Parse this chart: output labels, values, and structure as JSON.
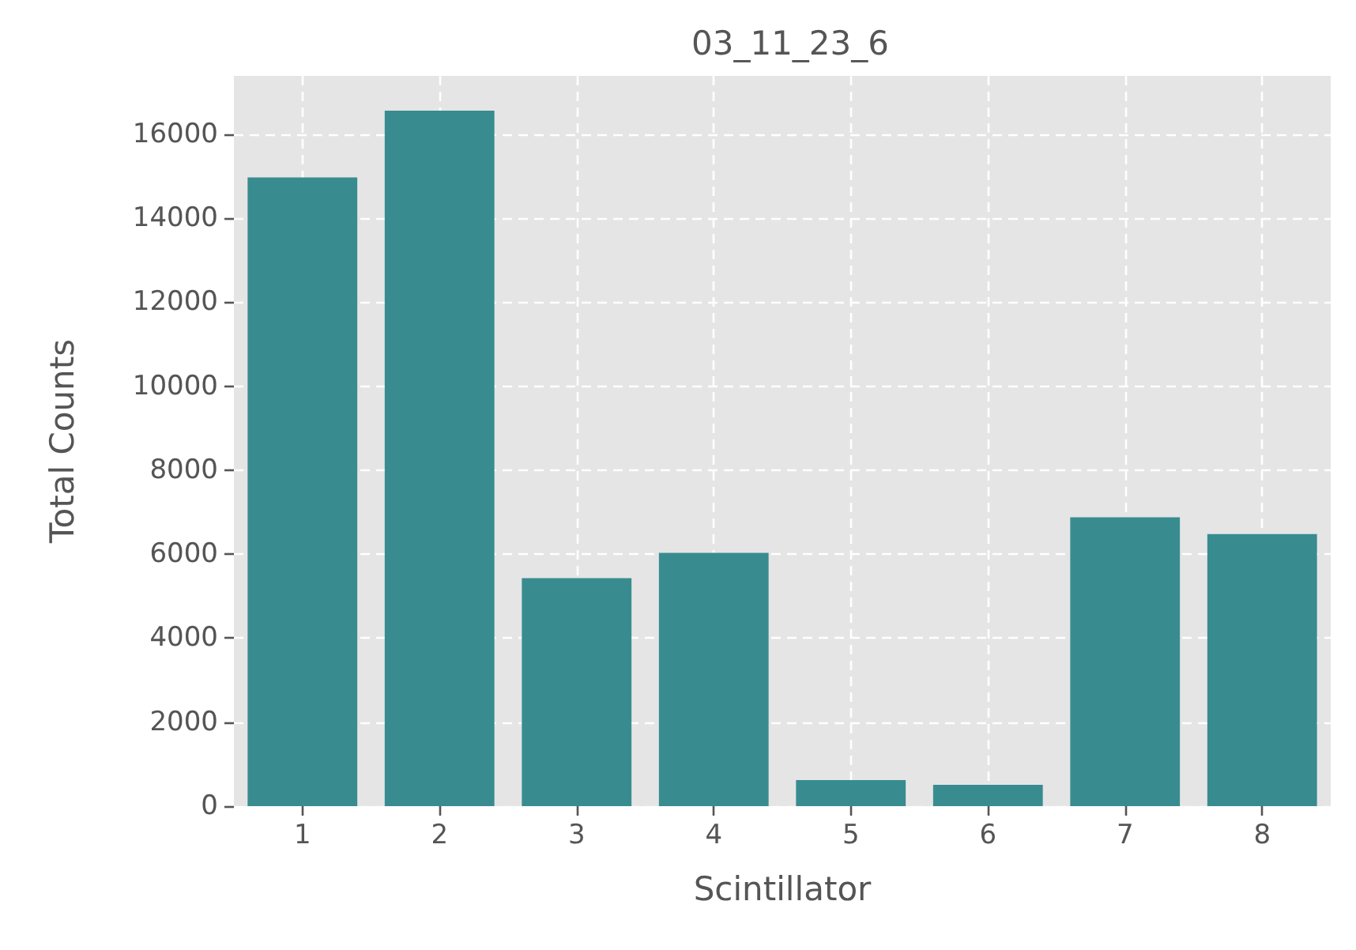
{
  "chart_data": {
    "type": "bar",
    "title": "03_11_23_6",
    "xlabel": "Scintillator",
    "ylabel": "Total Counts",
    "categories": [
      "1",
      "2",
      "3",
      "4",
      "5",
      "6",
      "7",
      "8"
    ],
    "values": [
      14970,
      16560,
      5430,
      6030,
      620,
      510,
      6880,
      6480
    ],
    "color": "#388c90",
    "ylim": [
      0,
      17390
    ],
    "yticks": [
      0,
      2000,
      4000,
      6000,
      8000,
      10000,
      12000,
      14000,
      16000
    ],
    "grid": true
  }
}
